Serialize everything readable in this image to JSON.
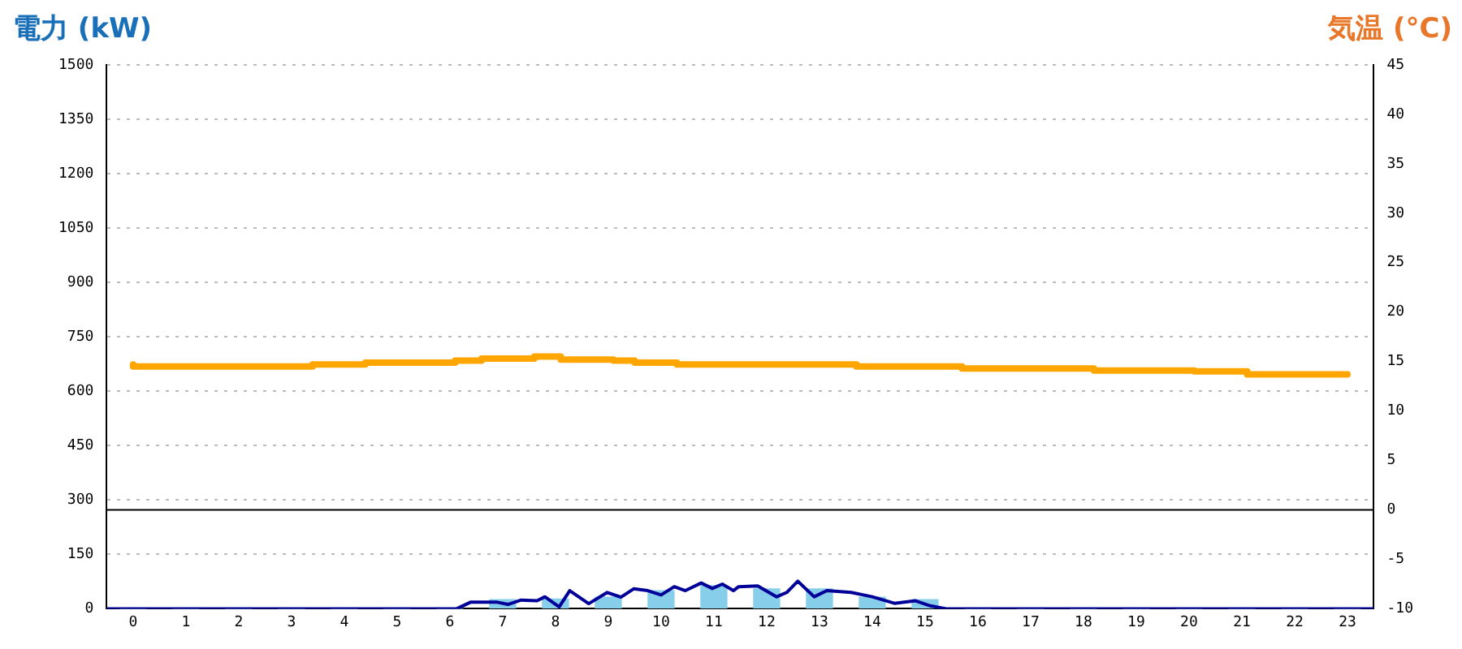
{
  "chart_data": {
    "type": "bar",
    "ylabel": "電力 (kW)",
    "y2label": "気温 (°C)",
    "x": [
      0,
      1,
      2,
      3,
      4,
      5,
      6,
      7,
      8,
      9,
      10,
      11,
      12,
      13,
      14,
      15,
      16,
      17,
      18,
      19,
      20,
      21,
      22,
      23
    ],
    "xlim": [
      -0.5,
      23.5
    ],
    "xticks": [
      0,
      1,
      2,
      3,
      4,
      5,
      6,
      7,
      8,
      9,
      10,
      11,
      12,
      13,
      14,
      15,
      16,
      17,
      18,
      19,
      20,
      21,
      22,
      23
    ],
    "ylim": [
      0,
      1500
    ],
    "yticks": [
      0,
      150,
      300,
      450,
      600,
      750,
      900,
      1050,
      1200,
      1350,
      1500
    ],
    "y2lim": [
      -10,
      45
    ],
    "y2ticks": [
      -10,
      -5,
      0,
      5,
      10,
      15,
      20,
      25,
      30,
      35,
      40,
      45
    ],
    "grid": "y",
    "marker": "none",
    "ref_lines": [
      {
        "axis": "y2",
        "value": 0,
        "color": "#000000"
      }
    ],
    "series": [
      {
        "color": "#87ceeb",
        "values": [
          0,
          0,
          0,
          0,
          0,
          0,
          0,
          25,
          27,
          32,
          50,
          64,
          55,
          55,
          32,
          25,
          0,
          0,
          0,
          0,
          0,
          0,
          0,
          0
        ]
      },
      {
        "type": "line",
        "color": "#000099",
        "x": [
          -0.5,
          6.13,
          6.39,
          6.9,
          7.1,
          7.35,
          7.65,
          7.8,
          8.07,
          8.27,
          8.63,
          8.98,
          9.24,
          9.48,
          9.75,
          10.0,
          10.25,
          10.46,
          10.76,
          10.97,
          11.16,
          11.37,
          11.47,
          11.83,
          12.19,
          12.38,
          12.59,
          12.9,
          13.14,
          13.6,
          14.0,
          14.42,
          14.82,
          15.1,
          15.4,
          23.5
        ],
        "values": [
          0,
          0,
          18,
          18,
          12,
          24,
          22,
          33,
          5,
          50,
          14,
          45,
          32,
          55,
          50,
          38,
          61,
          50,
          71,
          56,
          68,
          50,
          61,
          63,
          33,
          45,
          76,
          33,
          50,
          45,
          33,
          15,
          22,
          8,
          0,
          0
        ]
      },
      {
        "type": "step",
        "color": "#ffa500",
        "axis": "y2",
        "x": [
          0,
          3.4,
          4.4,
          6.1,
          6.6,
          7.6,
          8.1,
          9.1,
          9.5,
          10.3,
          13.7,
          15.7,
          18.2,
          20.1,
          21.1,
          22.1,
          23
        ],
        "values": [
          14.7,
          14.5,
          14.7,
          14.9,
          15.1,
          15.3,
          15.5,
          15.2,
          15.1,
          14.9,
          14.7,
          14.5,
          14.3,
          14.1,
          14.0,
          13.7,
          13.7
        ]
      }
    ]
  }
}
